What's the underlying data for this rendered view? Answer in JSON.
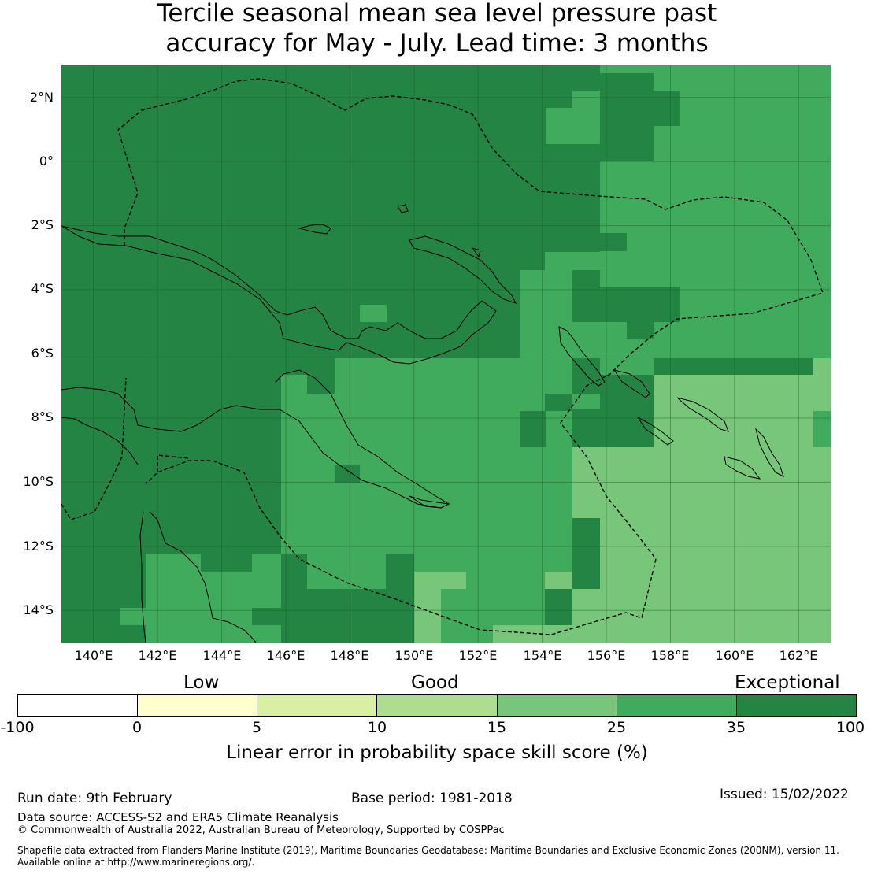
{
  "title": {
    "line1": "Tercile seasonal mean sea level pressure past",
    "line2": "accuracy for May - July. Lead time: 3 months"
  },
  "map": {
    "lat_labels": [
      "2°N",
      "0°",
      "2°S",
      "4°S",
      "6°S",
      "8°S",
      "10°S",
      "12°S",
      "14°S"
    ],
    "lon_labels": [
      "140°E",
      "142°E",
      "144°E",
      "146°E",
      "148°E",
      "150°E",
      "152°E",
      "154°E",
      "156°E",
      "158°E",
      "160°E",
      "162°E"
    ],
    "extent": {
      "lon": [
        139,
        163
      ],
      "lat": [
        -15,
        3
      ]
    },
    "grid_lines": true,
    "colors": {
      "exceptional": "#238443",
      "35": "#41ab5d",
      "25": "#78c679",
      "15": "#addd8e",
      "10": "#d9f0a3",
      "5": "#ffffcc",
      "0": "#ffffff"
    }
  },
  "legend": {
    "categories": [
      "Low",
      "Good",
      "Exceptional"
    ],
    "segments": [
      "#ffffff",
      "#ffffcc",
      "#d9f0a3",
      "#addd8e",
      "#78c679",
      "#41ab5d",
      "#238443"
    ],
    "ticks": [
      "-100",
      "0",
      "5",
      "10",
      "15",
      "25",
      "35",
      "100"
    ],
    "label": "Linear error in probability space skill score (%)"
  },
  "footer": {
    "run_date": "Run date: 9th February",
    "base_period": "Base period: 1981-2018",
    "issued": "Issued: 15/02/2022",
    "data_source": "Data source: ACCESS-S2 and ERA5 Climate Reanalysis",
    "copyright": "© Commonwealth of Australia 2022, Australian Bureau of Meteorology, Supported by COSPPac",
    "shapefile_1": "Shapefile data extracted from Flanders Marine Institute (2019), Maritime Boundaries Geodatabase: Maritime Boundaries and Exclusive Economic Zones (200NM), version 11.",
    "shapefile_2": "Available online at http://www.marineregions.org/."
  }
}
